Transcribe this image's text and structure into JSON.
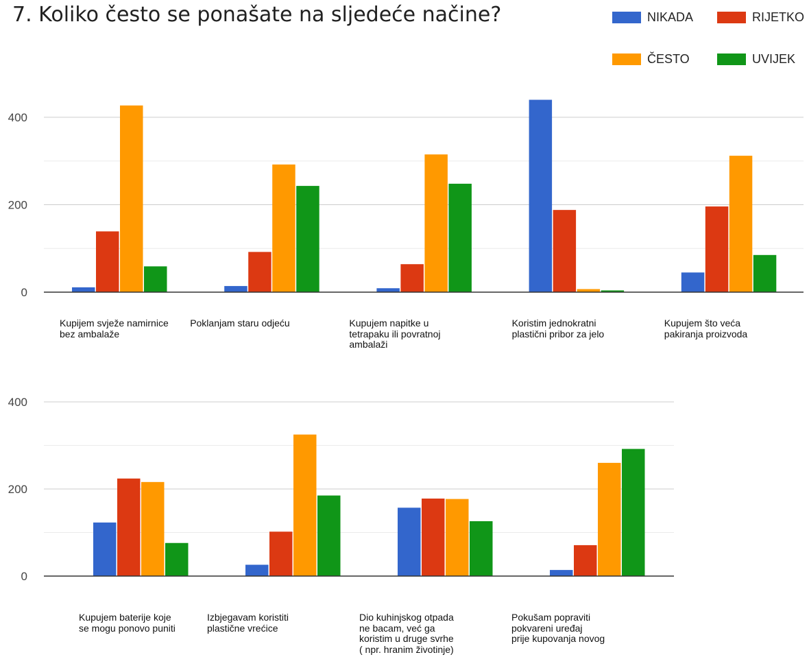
{
  "title": "7. Koliko često se ponašate na sljedeće načine?",
  "legend": [
    {
      "name": "NIKADA",
      "color": "#3366cc"
    },
    {
      "name": "RIJETKO",
      "color": "#dc3912"
    },
    {
      "name": "ČESTO",
      "color": "#ff9900"
    },
    {
      "name": "UVIJEK",
      "color": "#109618"
    }
  ],
  "chart_data": [
    {
      "type": "bar",
      "ylim": [
        0,
        400
      ],
      "yticks": [
        "0",
        "200",
        "400"
      ],
      "grid": true,
      "legend_position": "top-right",
      "categories": [
        "Kupijem svježe namirnice\nbez ambalaže",
        "Poklanjam staru odjeću",
        "Kupujem napitke u\ntetrapaku ili povratnoj\nambalaži",
        "Koristim jednokratni\nplastični pribor za jelo",
        "Kupujem što veća\npakiranja proizvoda"
      ],
      "series": [
        {
          "name": "NIKADA",
          "values": [
            11,
            14,
            9,
            440,
            45
          ]
        },
        {
          "name": "RIJETKO",
          "values": [
            139,
            92,
            64,
            188,
            196
          ]
        },
        {
          "name": "ČESTO",
          "values": [
            427,
            292,
            315,
            7,
            312
          ]
        },
        {
          "name": "UVIJEK",
          "values": [
            59,
            243,
            248,
            4,
            85
          ]
        }
      ]
    },
    {
      "type": "bar",
      "ylim": [
        0,
        400
      ],
      "yticks": [
        "0",
        "200",
        "400"
      ],
      "grid": true,
      "legend_position": "top-right",
      "categories": [
        "Kupujem baterije koje\nse mogu ponovo puniti",
        "Izbjegavam koristiti\nplastične vrećice",
        "Dio kuhinjskog otpada\nne bacam, već ga\nkoristim u druge svrhe\n( npr. hranim životinje)",
        "Pokušam popraviti\npokvareni uređaj\nprije kupovanja novog"
      ],
      "series": [
        {
          "name": "NIKADA",
          "values": [
            123,
            26,
            157,
            14
          ]
        },
        {
          "name": "RIJETKO",
          "values": [
            224,
            102,
            178,
            71
          ]
        },
        {
          "name": "ČESTO",
          "values": [
            216,
            325,
            177,
            260
          ]
        },
        {
          "name": "UVIJEK",
          "values": [
            76,
            185,
            126,
            292
          ]
        }
      ]
    }
  ]
}
